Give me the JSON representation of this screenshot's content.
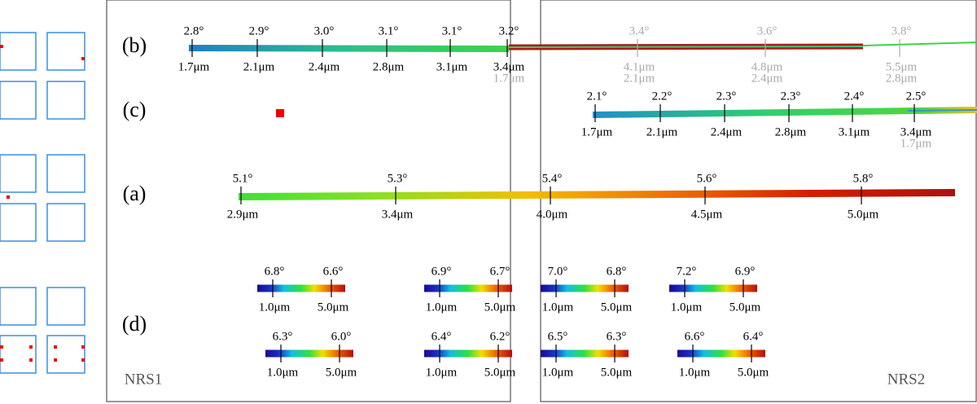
{
  "panel_labels": {
    "b": "(b)",
    "c": "(c)",
    "a": "(a)",
    "d": "(d)"
  },
  "detectors": [
    "NRS1",
    "NRS2"
  ],
  "spectrum_b": {
    "ticks": [
      {
        "angle": "2.8°",
        "wavelength": "1.7μm"
      },
      {
        "angle": "2.9°",
        "wavelength": "2.1μm"
      },
      {
        "angle": "3.0°",
        "wavelength": "2.4μm"
      },
      {
        "angle": "3.1°",
        "wavelength": "2.8μm"
      },
      {
        "angle": "3.1°",
        "wavelength": "3.1μm"
      },
      {
        "angle": "3.2°",
        "wavelength": "3.4μm",
        "wavelength_2": "1.7μm"
      },
      {
        "angle": "3.4°",
        "wavelength": "4.1μm",
        "wavelength_2": "2.1μm"
      },
      {
        "angle": "3.6°",
        "wavelength": "4.8μm",
        "wavelength_2": "2.4μm"
      },
      {
        "angle": "3.8°",
        "wavelength": "5.5μm",
        "wavelength_2": "2.8μm"
      }
    ]
  },
  "spectrum_c": {
    "ticks": [
      {
        "angle": "2.1°",
        "wavelength": "1.7μm"
      },
      {
        "angle": "2.2°",
        "wavelength": "2.1μm"
      },
      {
        "angle": "2.3°",
        "wavelength": "2.4μm"
      },
      {
        "angle": "2.3°",
        "wavelength": "2.8μm"
      },
      {
        "angle": "2.4°",
        "wavelength": "3.1μm"
      },
      {
        "angle": "2.5°",
        "wavelength": "3.4μm",
        "wavelength_2": "1.7μm"
      }
    ]
  },
  "spectrum_a": {
    "ticks": [
      {
        "angle": "5.1°",
        "wavelength": "2.9μm"
      },
      {
        "angle": "5.3°",
        "wavelength": "3.4μm"
      },
      {
        "angle": "5.4°",
        "wavelength": "4.0μm"
      },
      {
        "angle": "5.6°",
        "wavelength": "4.5μm"
      },
      {
        "angle": "5.8°",
        "wavelength": "5.0μm"
      }
    ]
  },
  "spectrum_d": {
    "bars": [
      {
        "ticks": [
          {
            "angle": "6.8°",
            "wavelength": "1.0μm"
          },
          {
            "angle": "6.6°",
            "wavelength": "5.0μm"
          }
        ]
      },
      {
        "ticks": [
          {
            "angle": "6.9°",
            "wavelength": "1.0μm"
          },
          {
            "angle": "6.7°",
            "wavelength": "5.0μm"
          }
        ]
      },
      {
        "ticks": [
          {
            "angle": "7.0°",
            "wavelength": "1.0μm"
          },
          {
            "angle": "6.8°",
            "wavelength": "5.0μm"
          }
        ]
      },
      {
        "ticks": [
          {
            "angle": "7.2°",
            "wavelength": "1.0μm"
          },
          {
            "angle": "6.9°",
            "wavelength": "5.0μm"
          }
        ]
      },
      {
        "ticks": [
          {
            "angle": "6.3°",
            "wavelength": "1.0μm"
          },
          {
            "angle": "6.0°",
            "wavelength": "5.0μm"
          }
        ]
      },
      {
        "ticks": [
          {
            "angle": "6.4°",
            "wavelength": "1.0μm"
          },
          {
            "angle": "6.2°",
            "wavelength": "5.0μm"
          }
        ]
      },
      {
        "ticks": [
          {
            "angle": "6.5°",
            "wavelength": "1.0μm"
          },
          {
            "angle": "6.3°",
            "wavelength": "5.0μm"
          }
        ]
      },
      {
        "ticks": [
          {
            "angle": "6.6°",
            "wavelength": "1.0μm"
          },
          {
            "angle": "6.4°",
            "wavelength": "5.0μm"
          }
        ]
      }
    ]
  }
}
